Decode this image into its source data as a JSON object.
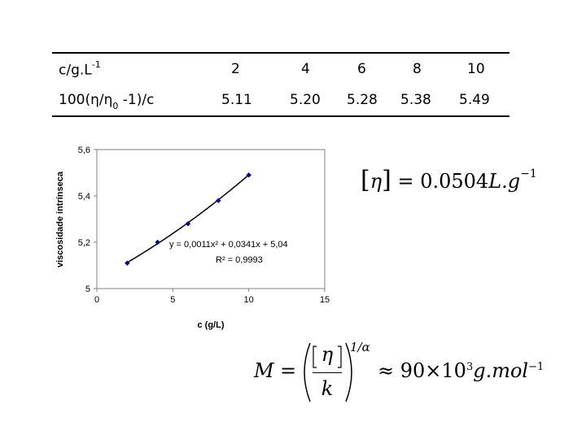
{
  "table": {
    "row1_label_base": "c/g.L",
    "row1_label_exp": "-1",
    "row2_label_pre": "100(η/η",
    "row2_label_sub": "0",
    "row2_label_post": " -1)/c",
    "concentrations": [
      "2",
      "4",
      "6",
      "8",
      "10"
    ],
    "viscosities": [
      "5.11",
      "5.20",
      "5.28",
      "5.38",
      "5.49"
    ]
  },
  "chart_data": {
    "type": "scatter",
    "x": [
      2,
      4,
      6,
      8,
      10
    ],
    "y": [
      5.11,
      5.2,
      5.28,
      5.38,
      5.49
    ],
    "xlabel": "c (g/L)",
    "ylabel": "viscosidade intrínseca",
    "xlim": [
      0,
      15
    ],
    "ylim": [
      5,
      5.6
    ],
    "xticks": [
      "0",
      "5",
      "10",
      "15"
    ],
    "yticks": [
      "5",
      "5,2",
      "5,4",
      "5,6"
    ],
    "trendline": {
      "type": "polynomial",
      "a": 0.0011,
      "b": 0.0341,
      "c": 5.04,
      "range": [
        2,
        10
      ]
    },
    "equation_text": "y = 0,0011x² + 0,0341x + 5,04",
    "r2_text": "R² = 0,9993",
    "grid": false,
    "marker_color": "#000080",
    "line_color": "#000000"
  },
  "formula_eta": {
    "lhs": "η",
    "equals": "= 0.0504",
    "unit": "L.g",
    "exp": "−1"
  },
  "formula_mass": {
    "lhs": "M",
    "equals": "=",
    "numerator": "η",
    "denominator": "k",
    "power": "1/α",
    "approx": "≈ 90×10",
    "approx_exp": "3",
    "unit": "g.mol",
    "unit_exp": "−1"
  }
}
